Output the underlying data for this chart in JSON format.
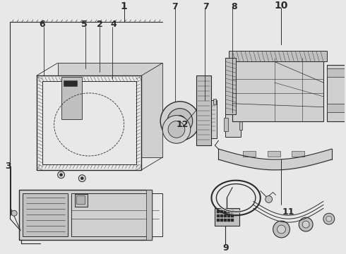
{
  "bg": "#e8e8e8",
  "lc": "#2a2a2a",
  "white": "#ffffff",
  "gray1": "#c0c0c0",
  "gray2": "#d0d0d0",
  "gray3": "#b0b0b0"
}
